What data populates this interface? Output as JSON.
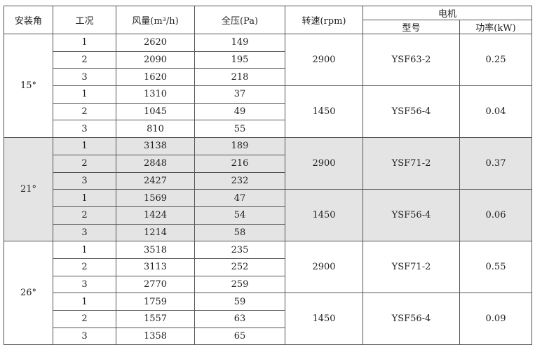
{
  "headers": {
    "angle": "安装角",
    "condition": "工况",
    "flow": "风量(m³/h)",
    "pressure": "全压(Pa)",
    "speed": "转速(rpm)",
    "motor": "电机",
    "model": "型号",
    "power": "功率(kW)"
  },
  "groups": [
    {
      "angle": "15°",
      "shaded": false,
      "speeds": [
        {
          "speed": "2900",
          "model": "YSF63-2",
          "power": "0.25",
          "rows": [
            [
              "1",
              "2620",
              "149"
            ],
            [
              "2",
              "2090",
              "195"
            ],
            [
              "3",
              "1620",
              "218"
            ]
          ]
        },
        {
          "speed": "1450",
          "model": "YSF56-4",
          "power": "0.04",
          "rows": [
            [
              "1",
              "1310",
              "37"
            ],
            [
              "2",
              "1045",
              "49"
            ],
            [
              "3",
              "810",
              "55"
            ]
          ]
        }
      ]
    },
    {
      "angle": "21°",
      "shaded": true,
      "speeds": [
        {
          "speed": "2900",
          "model": "YSF71-2",
          "power": "0.37",
          "rows": [
            [
              "1",
              "3138",
              "189"
            ],
            [
              "2",
              "2848",
              "216"
            ],
            [
              "3",
              "2427",
              "232"
            ]
          ]
        },
        {
          "speed": "1450",
          "model": "YSF56-4",
          "power": "0.06",
          "rows": [
            [
              "1",
              "1569",
              "47"
            ],
            [
              "2",
              "1424",
              "54"
            ],
            [
              "3",
              "1214",
              "58"
            ]
          ]
        }
      ]
    },
    {
      "angle": "26°",
      "shaded": false,
      "speeds": [
        {
          "speed": "2900",
          "model": "YSF71-2",
          "power": "0.55",
          "rows": [
            [
              "1",
              "3518",
              "235"
            ],
            [
              "2",
              "3113",
              "252"
            ],
            [
              "3",
              "2770",
              "259"
            ]
          ]
        },
        {
          "speed": "1450",
          "model": "YSF56-4",
          "power": "0.09",
          "rows": [
            [
              "1",
              "1759",
              "59"
            ],
            [
              "2",
              "1557",
              "63"
            ],
            [
              "3",
              "1358",
              "65"
            ]
          ]
        }
      ]
    }
  ]
}
